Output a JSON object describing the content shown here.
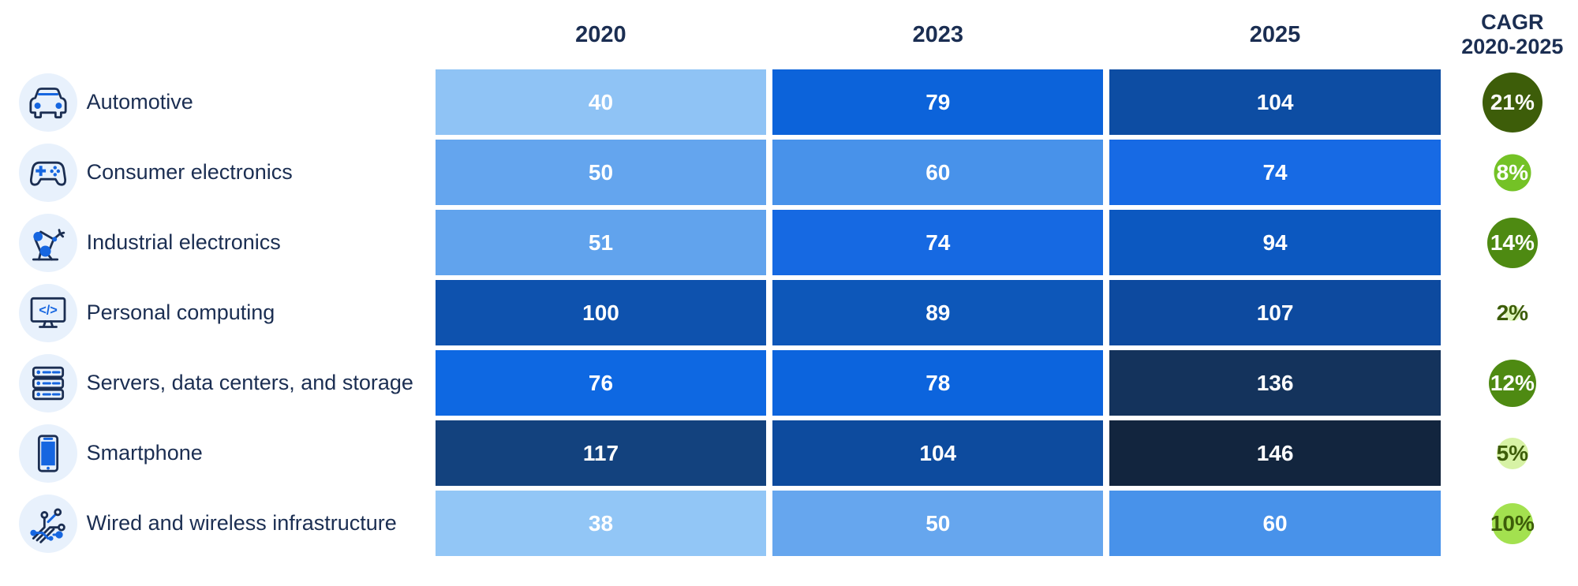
{
  "header": {
    "col_2020": "2020",
    "col_2023": "2023",
    "col_2025": "2025",
    "cagr_label": "CAGR\n2020-2025"
  },
  "colors": {
    "label_text": "#1b2e52",
    "cell_text": "#ffffff",
    "icon_bg": "#e8f1fc",
    "icon_accent": "#1666e0",
    "heat_low": "#92c6f6",
    "heat_high": "#12253e"
  },
  "rows": [
    {
      "label": "Automotive",
      "icon": "car-icon",
      "values": [
        "40",
        "79",
        "104"
      ],
      "cell_colors": [
        "#8fc3f5",
        "#0c63da",
        "#0d4da3"
      ],
      "cagr": {
        "label": "21%",
        "circle_color": "#3d5d09",
        "text_color": "#ffffff",
        "diameter": 76
      }
    },
    {
      "label": "Consumer electronics",
      "icon": "game-controller-icon",
      "values": [
        "50",
        "60",
        "74"
      ],
      "cell_colors": [
        "#64a5ee",
        "#4892ea",
        "#176ae4"
      ],
      "cagr": {
        "label": "8%",
        "circle_color": "#74c226",
        "text_color": "#ffffff",
        "diameter": 47
      }
    },
    {
      "label": "Industrial electronics",
      "icon": "robot-arm-icon",
      "values": [
        "51",
        "74",
        "94"
      ],
      "cell_colors": [
        "#61a3ed",
        "#1669e2",
        "#0c58c0"
      ],
      "cagr": {
        "label": "14%",
        "circle_color": "#4e8a12",
        "text_color": "#ffffff",
        "diameter": 64
      }
    },
    {
      "label": "Personal computing",
      "icon": "monitor-code-icon",
      "values": [
        "100",
        "89",
        "107"
      ],
      "cell_colors": [
        "#0e52ae",
        "#0d57b9",
        "#0d4a9f"
      ],
      "cagr": {
        "label": "2%",
        "circle_color": "#dff5bc",
        "text_color": "#3d5d09",
        "diameter": 20
      }
    },
    {
      "label": "Servers, data centers, and storage",
      "icon": "server-stack-icon",
      "values": [
        "76",
        "78",
        "136"
      ],
      "cell_colors": [
        "#0e68e2",
        "#0c64dd",
        "#14335c"
      ],
      "cagr": {
        "label": "12%",
        "circle_color": "#4e8a12",
        "text_color": "#ffffff",
        "diameter": 60
      }
    },
    {
      "label": "Smartphone",
      "icon": "smartphone-icon",
      "values": [
        "117",
        "104",
        "146"
      ],
      "cell_colors": [
        "#13427e",
        "#0d4b9e",
        "#12253e"
      ],
      "cagr": {
        "label": "5%",
        "circle_color": "#d7f2a5",
        "text_color": "#3d5d09",
        "diameter": 40
      }
    },
    {
      "label": "Wired and wireless infrastructure",
      "icon": "circuit-icon",
      "values": [
        "38",
        "50",
        "60"
      ],
      "cell_colors": [
        "#92c6f6",
        "#66a6ee",
        "#4892ea"
      ],
      "cagr": {
        "label": "10%",
        "circle_color": "#a3e14f",
        "text_color": "#3d5d09",
        "diameter": 52
      }
    }
  ],
  "chart_data": {
    "type": "heatmap",
    "title": "",
    "columns": [
      "2020",
      "2023",
      "2025"
    ],
    "categories": [
      "Automotive",
      "Consumer electronics",
      "Industrial electronics",
      "Personal computing",
      "Servers, data centers, and storage",
      "Smartphone",
      "Wired and wireless infrastructure"
    ],
    "series": [
      {
        "name": "Automotive",
        "values": [
          40,
          79,
          104
        ],
        "cagr_2020_2025": "21%"
      },
      {
        "name": "Consumer electronics",
        "values": [
          50,
          60,
          74
        ],
        "cagr_2020_2025": "8%"
      },
      {
        "name": "Industrial electronics",
        "values": [
          51,
          74,
          94
        ],
        "cagr_2020_2025": "14%"
      },
      {
        "name": "Personal computing",
        "values": [
          100,
          89,
          107
        ],
        "cagr_2020_2025": "2%"
      },
      {
        "name": "Servers, data centers, and storage",
        "values": [
          76,
          78,
          136
        ],
        "cagr_2020_2025": "12%"
      },
      {
        "name": "Smartphone",
        "values": [
          117,
          104,
          146
        ],
        "cagr_2020_2025": "5%"
      },
      {
        "name": "Wired and wireless infrastructure",
        "values": [
          38,
          50,
          60
        ],
        "cagr_2020_2025": "10%"
      }
    ],
    "value_range": [
      38,
      146
    ],
    "color_encoding": "cell shade: light blue = low value, dark navy = high value",
    "cagr_encoding": "bubble size and green shade scale with CAGR percentage",
    "legend": "none",
    "grid": false
  }
}
